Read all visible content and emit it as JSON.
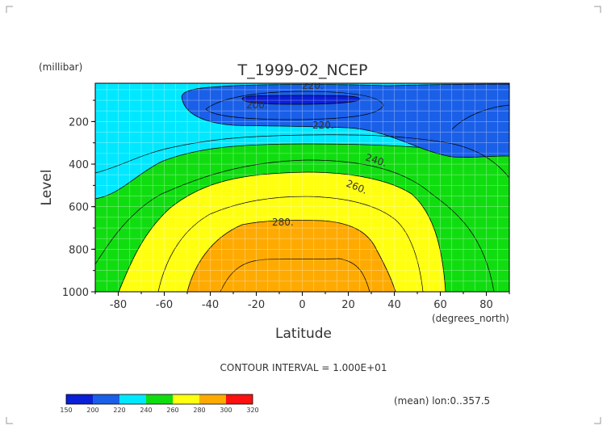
{
  "chart_data": {
    "type": "contour",
    "title": "T_1999-02_NCEP",
    "ylabel": "Level",
    "yunits": "(millibar)",
    "xlabel": "Latitude",
    "xunits": "(degrees_north)",
    "xlim": [
      -90,
      90
    ],
    "ylim_pressure_top_to_bottom": [
      20,
      1000
    ],
    "y_scale": "linear, inverted (pressure increases downward)",
    "x_ticks": [
      "-80",
      "-60",
      "-40",
      "-20",
      "0",
      "20",
      "40",
      "60",
      "80"
    ],
    "x_tick_values": [
      -80,
      -60,
      -40,
      -20,
      0,
      20,
      40,
      60,
      80
    ],
    "y_ticks": [
      "200",
      "400",
      "600",
      "800",
      "1000"
    ],
    "y_tick_values": [
      200,
      400,
      600,
      800,
      1000
    ],
    "grid": "on",
    "contour_interval_text": "CONTOUR INTERVAL = 1.000E+01",
    "contour_labels": [
      "220.",
      "200.",
      "220.",
      "240.",
      "260.",
      "280."
    ],
    "colorbar": {
      "levels": [
        "150",
        "200",
        "220",
        "240",
        "260",
        "280",
        "300",
        "320"
      ],
      "colors": [
        "#0a1fd6",
        "#1a5fe8",
        "#00e8ff",
        "#10dd10",
        "#ffff10",
        "#ffaa00",
        "#ff1010"
      ]
    },
    "footnote": "(mean) lon:0..357.5"
  },
  "bands": [
    {
      "name": "band-240-260",
      "color": "#10dd10"
    },
    {
      "name": "band-260-280",
      "color": "#ffff10"
    },
    {
      "name": "band-280-300",
      "color": "#ffaa00"
    },
    {
      "name": "band-200-220",
      "color": "#1a5fe8"
    },
    {
      "name": "band-150-200",
      "color": "#0a1fd6"
    }
  ]
}
